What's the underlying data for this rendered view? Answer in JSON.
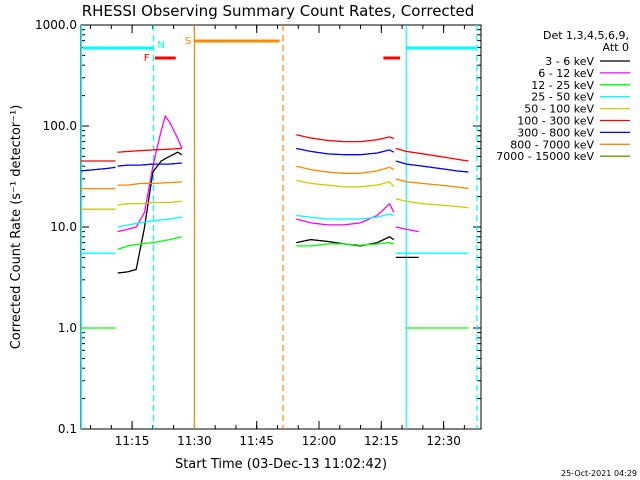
{
  "chart_data": {
    "type": "line",
    "title": "RHESSI Observing Summary Count Rates, Corrected",
    "xlabel": "Start Time (03-Dec-13 11:02:42)",
    "ylabel": "Corrected Count Rate (s⁻¹ detector⁻¹)",
    "y_scale": "log",
    "ylim": [
      0.1,
      1000
    ],
    "xlim": [
      "11:02:42",
      "12:39:00"
    ],
    "y_ticks": [
      "0.1",
      "1.0",
      "10.0",
      "100.0",
      "1000.0"
    ],
    "x_ticks": [
      "11:15",
      "11:30",
      "11:45",
      "12:00",
      "12:15",
      "12:30"
    ],
    "legend": {
      "position": "right-outside",
      "header": [
        "Det 1,3,4,5,6,9,",
        "Att 0"
      ]
    },
    "series": [
      {
        "name": "3 - 6 keV",
        "color": "#000000",
        "segments": [
          {
            "x": [
              "11:11:30",
              "11:14:00",
              "11:16:00",
              "11:18:00",
              "11:20:00",
              "11:22:00",
              "11:24:00",
              "11:26:00",
              "11:27:00"
            ],
            "y": [
              3.5,
              3.6,
              3.8,
              10,
              35,
              45,
              50,
              55,
              52
            ]
          },
          {
            "x": [
              "11:54:30",
              "11:58:00",
              "12:02:00",
              "12:06:00",
              "12:10:00",
              "12:14:00",
              "12:17:00",
              "12:18:00"
            ],
            "y": [
              7,
              7.5,
              7.2,
              6.8,
              6.5,
              7,
              8,
              7.5
            ]
          },
          {
            "x": [
              "12:18:30",
              "12:21:00",
              "12:24:00"
            ],
            "y": [
              5,
              5,
              5
            ]
          }
        ]
      },
      {
        "name": "6 - 12 keV",
        "color": "#ff00ff",
        "segments": [
          {
            "x": [
              "11:11:30",
              "11:14:00",
              "11:16:00",
              "11:18:00",
              "11:20:00",
              "11:22:00",
              "11:23:00",
              "11:24:00",
              "11:26:00",
              "11:27:00"
            ],
            "y": [
              9,
              9.5,
              10,
              14,
              40,
              90,
              125,
              110,
              75,
              60
            ]
          },
          {
            "x": [
              "11:54:30",
              "11:58:00",
              "12:02:00",
              "12:06:00",
              "12:10:00",
              "12:14:00",
              "12:17:00",
              "12:18:00"
            ],
            "y": [
              12,
              11,
              10.5,
              10.5,
              11,
              13,
              17,
              14
            ]
          },
          {
            "x": [
              "12:18:30",
              "12:21:00",
              "12:24:00"
            ],
            "y": [
              10,
              9.5,
              9
            ]
          }
        ]
      },
      {
        "name": "12 - 25 keV",
        "color": "#00ff00",
        "segments": [
          {
            "x": [
              "11:02:42",
              "11:05:00",
              "11:08:00",
              "11:11:00"
            ],
            "y": [
              1,
              1,
              1,
              1
            ]
          },
          {
            "x": [
              "11:11:30",
              "11:14:00",
              "11:17:00",
              "11:20:00",
              "11:24:00",
              "11:27:00"
            ],
            "y": [
              6,
              6.5,
              6.8,
              7,
              7.5,
              8
            ]
          },
          {
            "x": [
              "11:54:30",
              "11:58:00",
              "12:02:00",
              "12:06:00",
              "12:10:00",
              "12:14:00",
              "12:17:00",
              "12:18:00"
            ],
            "y": [
              6.5,
              6.5,
              6.8,
              6.8,
              6.6,
              6.8,
              7,
              6.8
            ]
          },
          {
            "x": [
              "12:21:00",
              "12:25:00",
              "12:29:00",
              "12:33:00",
              "12:36:00"
            ],
            "y": [
              1,
              1,
              1,
              1,
              1
            ]
          }
        ]
      },
      {
        "name": "25 - 50 keV",
        "color": "#00ffff",
        "segments": [
          {
            "x": [
              "11:02:42",
              "11:06:00",
              "11:09:00",
              "11:11:00"
            ],
            "y": [
              5.5,
              5.5,
              5.5,
              5.5
            ]
          },
          {
            "x": [
              "11:11:30",
              "11:14:00",
              "11:17:00",
              "11:20:00",
              "11:24:00",
              "11:27:00"
            ],
            "y": [
              10,
              10.5,
              11,
              11.5,
              12,
              12.5
            ]
          },
          {
            "x": [
              "11:54:30",
              "11:58:00",
              "12:02:00",
              "12:06:00",
              "12:10:00",
              "12:14:00",
              "12:17:00",
              "12:18:00"
            ],
            "y": [
              13,
              12.5,
              12,
              12,
              12,
              12.5,
              13.5,
              13
            ]
          },
          {
            "x": [
              "12:18:30",
              "12:21:00",
              "12:25:00",
              "12:29:00",
              "12:33:00",
              "12:36:00"
            ],
            "y": [
              5.5,
              5.5,
              5.5,
              5.5,
              5.5,
              5.5
            ]
          }
        ]
      },
      {
        "name": "50 - 100 keV",
        "color": "#cccc00",
        "segments": [
          {
            "x": [
              "11:02:42",
              "11:06:00",
              "11:09:00",
              "11:11:00"
            ],
            "y": [
              15,
              15,
              15,
              15
            ]
          },
          {
            "x": [
              "11:11:30",
              "11:14:00",
              "11:17:00",
              "11:20:00",
              "11:24:00",
              "11:27:00"
            ],
            "y": [
              16.5,
              17,
              17,
              17.5,
              17.5,
              18
            ]
          },
          {
            "x": [
              "11:54:30",
              "11:58:00",
              "12:02:00",
              "12:06:00",
              "12:10:00",
              "12:14:00",
              "12:17:00",
              "12:18:00"
            ],
            "y": [
              29,
              27,
              26,
              25,
              25,
              26,
              28,
              25
            ]
          },
          {
            "x": [
              "12:18:30",
              "12:21:00",
              "12:25:00",
              "12:29:00",
              "12:33:00",
              "12:36:00"
            ],
            "y": [
              19,
              18,
              17,
              16.5,
              16,
              15.5
            ]
          }
        ]
      },
      {
        "name": "100 - 300 keV",
        "color": "#ff0000",
        "segments": [
          {
            "x": [
              "11:02:42",
              "11:06:00",
              "11:09:00",
              "11:11:00"
            ],
            "y": [
              45,
              45,
              45,
              45
            ]
          },
          {
            "x": [
              "11:11:30",
              "11:14:00",
              "11:17:00",
              "11:20:00",
              "11:24:00",
              "11:27:00"
            ],
            "y": [
              55,
              56,
              57,
              58,
              59,
              60
            ]
          },
          {
            "x": [
              "11:54:30",
              "11:58:00",
              "12:02:00",
              "12:06:00",
              "12:10:00",
              "12:14:00",
              "12:17:00",
              "12:18:00"
            ],
            "y": [
              82,
              76,
              72,
              70,
              70,
              73,
              78,
              75
            ]
          },
          {
            "x": [
              "12:18:30",
              "12:21:00",
              "12:25:00",
              "12:29:00",
              "12:33:00",
              "12:36:00"
            ],
            "y": [
              60,
              56,
              53,
              50,
              47,
              45
            ]
          }
        ]
      },
      {
        "name": "300 - 800 keV",
        "color": "#0000ff",
        "segments": [
          {
            "x": [
              "11:02:42",
              "11:06:00",
              "11:09:00",
              "11:11:00"
            ],
            "y": [
              36,
              37,
              38,
              39
            ]
          },
          {
            "x": [
              "11:11:30",
              "11:14:00",
              "11:17:00",
              "11:20:00",
              "11:24:00",
              "11:27:00"
            ],
            "y": [
              40,
              41,
              41,
              42,
              42,
              43
            ]
          },
          {
            "x": [
              "11:54:30",
              "11:58:00",
              "12:02:00",
              "12:06:00",
              "12:10:00",
              "12:14:00",
              "12:17:00",
              "12:18:00"
            ],
            "y": [
              60,
              56,
              53,
              52,
              52,
              54,
              58,
              55
            ]
          },
          {
            "x": [
              "12:18:30",
              "12:21:00",
              "12:25:00",
              "12:29:00",
              "12:33:00",
              "12:36:00"
            ],
            "y": [
              45,
              42,
              40,
              38,
              36,
              35
            ]
          }
        ]
      },
      {
        "name": "800 - 7000 keV",
        "color": "#ff8800",
        "segments": [
          {
            "x": [
              "11:02:42",
              "11:06:00",
              "11:09:00",
              "11:11:00"
            ],
            "y": [
              24,
              24,
              24,
              24
            ]
          },
          {
            "x": [
              "11:11:30",
              "11:14:00",
              "11:17:00",
              "11:20:00",
              "11:24:00",
              "11:27:00"
            ],
            "y": [
              26,
              26,
              27,
              27,
              27.5,
              28
            ]
          },
          {
            "x": [
              "11:54:30",
              "11:58:00",
              "12:02:00",
              "12:06:00",
              "12:10:00",
              "12:14:00",
              "12:17:00",
              "12:18:00"
            ],
            "y": [
              40,
              37,
              35,
              34,
              34,
              36,
              39,
              37
            ]
          },
          {
            "x": [
              "12:18:30",
              "12:21:00",
              "12:25:00",
              "12:29:00",
              "12:33:00",
              "12:36:00"
            ],
            "y": [
              30,
              28,
              27,
              26,
              25,
              24
            ]
          }
        ]
      },
      {
        "name": "7000 - 15000 keV",
        "color": "#669900",
        "segments": []
      }
    ],
    "annotations": [
      {
        "text": "S",
        "color": "#ff8800",
        "at": "11:28:30"
      },
      {
        "text": "N",
        "color": "#00ffff",
        "at": "11:22:00"
      },
      {
        "text": "F",
        "color": "#ff0000",
        "at": "11:18:30"
      }
    ]
  },
  "footer": {
    "timestamp": "25-Oct-2021 04:29"
  }
}
